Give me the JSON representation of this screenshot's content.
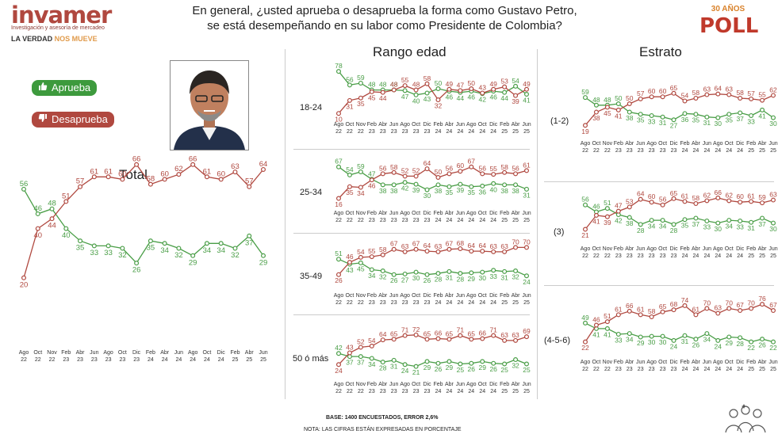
{
  "header": {
    "brand_name": "invamer",
    "brand_sub": "Investigación y asesoría de mercadeo",
    "tagline_a": "LA VERDAD ",
    "tagline_b": "NOS MUEVE",
    "question_line1": "En general, ¿usted aprueba o desaprueba la forma como Gustavo Petro,",
    "question_line2": "se está desempeñando en su labor como Presidente de Colombia?",
    "badge_top": "30 AÑOS",
    "badge_main": "POLL"
  },
  "legend": {
    "approve": "Aprueba",
    "disapprove": "Desaprueba"
  },
  "sections": {
    "total": "Total",
    "age": "Rango edad",
    "strata": "Estrato"
  },
  "footer": {
    "base": "BASE: 1400 ENCUESTADOS, ERROR 2,6%",
    "note": "NOTA: LAS CIFRAS ESTÁN EXPRESADAS EN PORCENTAJE"
  },
  "colors": {
    "approve": "#4a9e47",
    "disapprove": "#b0483f"
  },
  "icons": {
    "approve": "thumbs-up-icon",
    "disapprove": "thumbs-down-icon"
  },
  "chart_data": [
    {
      "type": "line",
      "id": "total",
      "label": "Total",
      "months": [
        "Ago",
        "Oct",
        "Nov",
        "Feb",
        "Abr",
        "Jun",
        "Ago",
        "Oct",
        "Dic",
        "Feb",
        "Abr",
        "Jun",
        "Ago",
        "Oct",
        "Dic",
        "Feb",
        "Abr",
        "Jun"
      ],
      "years": [
        "22",
        "22",
        "22",
        "23",
        "23",
        "23",
        "23",
        "23",
        "23",
        "24",
        "24",
        "24",
        "24",
        "24",
        "24",
        "25",
        "25",
        "25"
      ],
      "series": [
        {
          "name": "Aprueba",
          "values": [
            56,
            46,
            48,
            40,
            35,
            33,
            33,
            32,
            26,
            35,
            34,
            32,
            29,
            34,
            34,
            32,
            37,
            29
          ]
        },
        {
          "name": "Desaprueba",
          "values": [
            20,
            40,
            44,
            51,
            57,
            61,
            61,
            60,
            66,
            58,
            60,
            62,
            66,
            61,
            60,
            63,
            57,
            64
          ]
        }
      ]
    },
    {
      "type": "line",
      "id": "age-18-24",
      "label": "18-24",
      "series": [
        {
          "name": "Aprueba",
          "values": [
            78,
            56,
            59,
            48,
            48,
            48,
            47,
            40,
            43,
            50,
            46,
            44,
            46,
            42,
            46,
            44,
            54,
            41
          ]
        },
        {
          "name": "Desaprueba",
          "values": [
            10,
            31,
            35,
            45,
            44,
            48,
            55,
            48,
            58,
            32,
            49,
            47,
            50,
            43,
            49,
            53,
            39,
            49
          ]
        }
      ]
    },
    {
      "type": "line",
      "id": "age-25-34",
      "label": "25-34",
      "series": [
        {
          "name": "Aprueba",
          "values": [
            67,
            54,
            59,
            47,
            38,
            38,
            42,
            39,
            30,
            38,
            35,
            39,
            35,
            36,
            40,
            38,
            38,
            31
          ]
        },
        {
          "name": "Desaprueba",
          "values": [
            16,
            35,
            34,
            46,
            56,
            58,
            52,
            52,
            64,
            50,
            56,
            60,
            67,
            56,
            55,
            58,
            56,
            61
          ]
        }
      ]
    },
    {
      "type": "line",
      "id": "age-35-49",
      "label": "35-49",
      "series": [
        {
          "name": "Aprueba",
          "values": [
            51,
            43,
            45,
            34,
            32,
            26,
            27,
            30,
            26,
            28,
            31,
            28,
            29,
            30,
            33,
            31,
            32,
            24
          ]
        },
        {
          "name": "Desaprueba",
          "values": [
            26,
            46,
            54,
            55,
            58,
            67,
            63,
            67,
            64,
            63,
            67,
            68,
            64,
            64,
            63,
            63,
            70,
            70
          ]
        }
      ]
    },
    {
      "type": "line",
      "id": "age-50",
      "label": "50 ó más",
      "series": [
        {
          "name": "Aprueba",
          "values": [
            42,
            37,
            37,
            34,
            28,
            31,
            24,
            21,
            29,
            26,
            29,
            25,
            26,
            29,
            26,
            25,
            32,
            25
          ]
        },
        {
          "name": "Desaprueba",
          "values": [
            24,
            43,
            52,
            54,
            64,
            65,
            71,
            72,
            65,
            66,
            65,
            71,
            65,
            66,
            71,
            63,
            63,
            69
          ]
        }
      ]
    },
    {
      "type": "line",
      "id": "strata-1-2",
      "label": "(1-2)",
      "series": [
        {
          "name": "Aprueba",
          "values": [
            59,
            48,
            48,
            50,
            38,
            35,
            33,
            31,
            27,
            36,
            35,
            31,
            30,
            35,
            37,
            33,
            41,
            30
          ]
        },
        {
          "name": "Desaprueba",
          "values": [
            19,
            38,
            45,
            41,
            50,
            57,
            60,
            60,
            65,
            54,
            58,
            63,
            64,
            63,
            58,
            57,
            55,
            62
          ]
        }
      ]
    },
    {
      "type": "line",
      "id": "strata-3",
      "label": "(3)",
      "series": [
        {
          "name": "Aprueba",
          "values": [
            56,
            46,
            51,
            42,
            38,
            28,
            34,
            34,
            28,
            35,
            37,
            33,
            30,
            34,
            33,
            31,
            37,
            30
          ]
        },
        {
          "name": "Desaprueba",
          "values": [
            21,
            41,
            39,
            47,
            53,
            64,
            60,
            56,
            65,
            61,
            58,
            62,
            66,
            62,
            60,
            61,
            59,
            63
          ]
        }
      ]
    },
    {
      "type": "line",
      "id": "strata-4-5-6",
      "label": "(4-5-6)",
      "series": [
        {
          "name": "Aprueba",
          "values": [
            49,
            41,
            41,
            33,
            34,
            29,
            30,
            30,
            24,
            31,
            26,
            34,
            24,
            29,
            28,
            22,
            26,
            22
          ]
        },
        {
          "name": "Desaprueba",
          "values": [
            22,
            46,
            51,
            61,
            66,
            61,
            58,
            65,
            68,
            74,
            61,
            70,
            63,
            70,
            67,
            70,
            76,
            67
          ]
        }
      ]
    }
  ]
}
